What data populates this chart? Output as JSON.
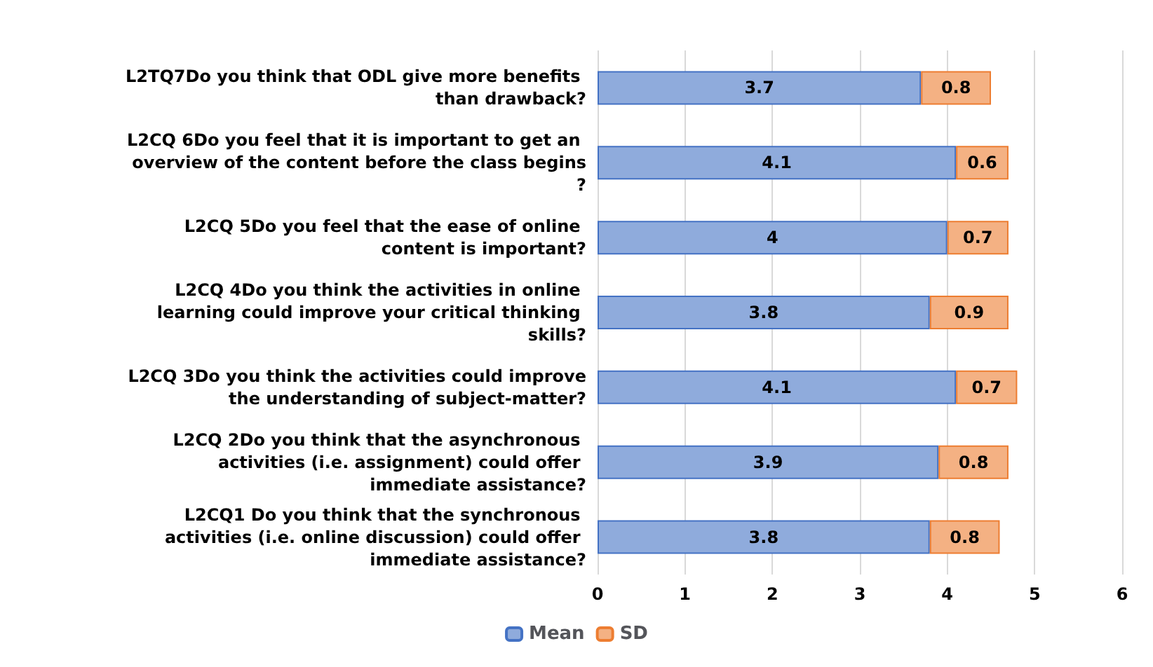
{
  "chart_data": {
    "type": "bar",
    "orientation": "horizontal",
    "stacked": true,
    "categories": [
      "L2TQ7Do you think that ODL give more benefits than drawback?",
      "L2CQ 6Do you feel that it is important to get an overview of the content before the class begins?",
      "L2CQ 5Do you feel that the ease of online content is important?",
      "L2CQ 4Do you think the activities in online learning could improve your critical thinking skills?",
      "L2CQ 3Do you think the activities could improve the understanding of subject-matter?",
      "L2CQ 2Do you think that the asynchronous activities (i.e. assignment) could offer immediate assistance?",
      "L2CQ1 Do you think that the synchronous activities (i.e. online discussion) could offer immediate assistance?"
    ],
    "series": [
      {
        "name": "Mean",
        "color": "#8fabdc",
        "values": [
          3.7,
          4.1,
          4,
          3.8,
          4.1,
          3.9,
          3.8
        ]
      },
      {
        "name": "SD",
        "color": "#f4b183",
        "values": [
          0.8,
          0.6,
          0.7,
          0.9,
          0.7,
          0.8,
          0.8
        ]
      }
    ],
    "xlim": [
      0,
      6
    ],
    "xticks": [
      0,
      1,
      2,
      3,
      4,
      5,
      6
    ],
    "grid": "x",
    "legend": "bottom",
    "data_labels": true
  }
}
